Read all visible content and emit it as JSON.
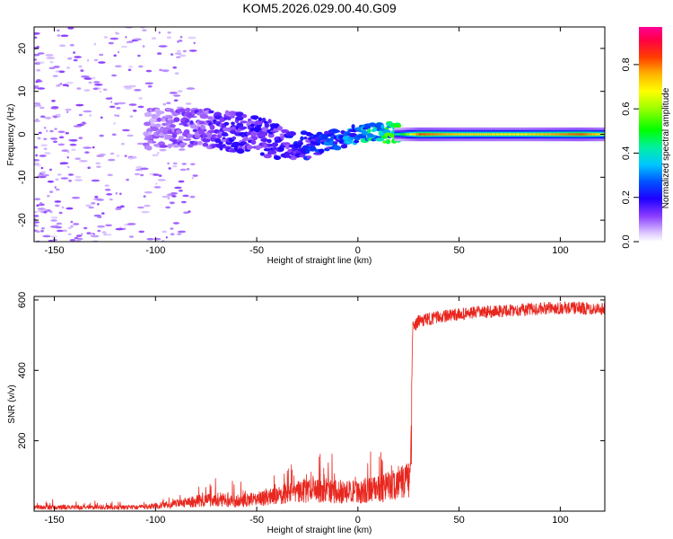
{
  "title": "KOM5.2026.029.00.40.G09",
  "chart_data": [
    {
      "type": "heatmap",
      "xlabel": "Height of straight line (km)",
      "ylabel": "Frequency (Hz)",
      "xlim": [
        -160,
        122
      ],
      "ylim": [
        -25,
        25
      ],
      "xticks": [
        -150,
        -100,
        -50,
        0,
        50,
        100
      ],
      "yticks": [
        -20,
        -10,
        0,
        10,
        20
      ],
      "colorbar": {
        "label": "Normalized spectral amplitude",
        "range": [
          0,
          0.97
        ],
        "ticks": [
          "0.0",
          "0.2",
          "0.4",
          "0.6",
          "0.8"
        ],
        "tick_values": [
          0.0,
          0.2,
          0.4,
          0.6,
          0.8
        ]
      },
      "ridge": {
        "x": [
          -160,
          -120,
          -100,
          -80,
          -60,
          -40,
          -30,
          -20,
          -10,
          0,
          10,
          20,
          30,
          50,
          80,
          122
        ],
        "y": [
          0,
          0,
          1.5,
          1.5,
          0.5,
          -1.5,
          -3.0,
          -2.0,
          -1.0,
          0.0,
          0.5,
          0.2,
          0.0,
          0.0,
          0.0,
          0.0
        ]
      },
      "amplitude_along_x": {
        "x": [
          -160,
          -100,
          -80,
          -60,
          -40,
          -20,
          0,
          10,
          20,
          30,
          50,
          80,
          110,
          122
        ],
        "v": [
          0.05,
          0.08,
          0.12,
          0.15,
          0.15,
          0.2,
          0.3,
          0.4,
          0.45,
          0.85,
          0.75,
          0.72,
          0.85,
          0.7
        ]
      }
    },
    {
      "type": "line",
      "xlabel": "Height of straight line (km)",
      "ylabel": "SNR (v/v)",
      "xlim": [
        -160,
        122
      ],
      "ylim": [
        0,
        610
      ],
      "xticks": [
        -150,
        -100,
        -50,
        0,
        50,
        100
      ],
      "yticks": [
        200,
        400,
        600
      ],
      "series_color": "#e8271f",
      "envelope": {
        "x": [
          -160,
          -110,
          -100,
          -90,
          -80,
          -70,
          -60,
          -50,
          -40,
          -30,
          -20,
          -10,
          0,
          10,
          20,
          26,
          27,
          30,
          40,
          60,
          80,
          100,
          122
        ],
        "y": [
          12,
          12,
          16,
          22,
          32,
          38,
          30,
          38,
          48,
          62,
          68,
          62,
          60,
          70,
          85,
          100,
          520,
          540,
          552,
          565,
          572,
          578,
          575
        ]
      }
    }
  ]
}
